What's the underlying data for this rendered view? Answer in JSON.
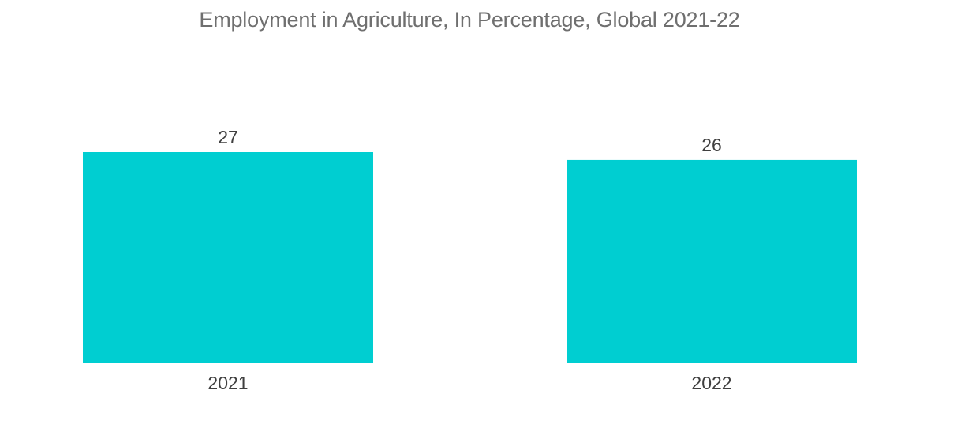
{
  "chart_data": {
    "type": "bar",
    "title": "Employment in Agriculture, In Percentage, Global 2021-22",
    "categories": [
      "2021",
      "2022"
    ],
    "values": [
      27,
      26
    ],
    "data_labels": [
      "27",
      "26"
    ],
    "xlabel": "",
    "ylabel": "",
    "ylim": [
      0,
      27
    ],
    "grid": false,
    "legend": "none",
    "colors": {
      "bar": "#00ced1",
      "title": "#6f6f6f",
      "label": "#3f3f3f"
    }
  }
}
